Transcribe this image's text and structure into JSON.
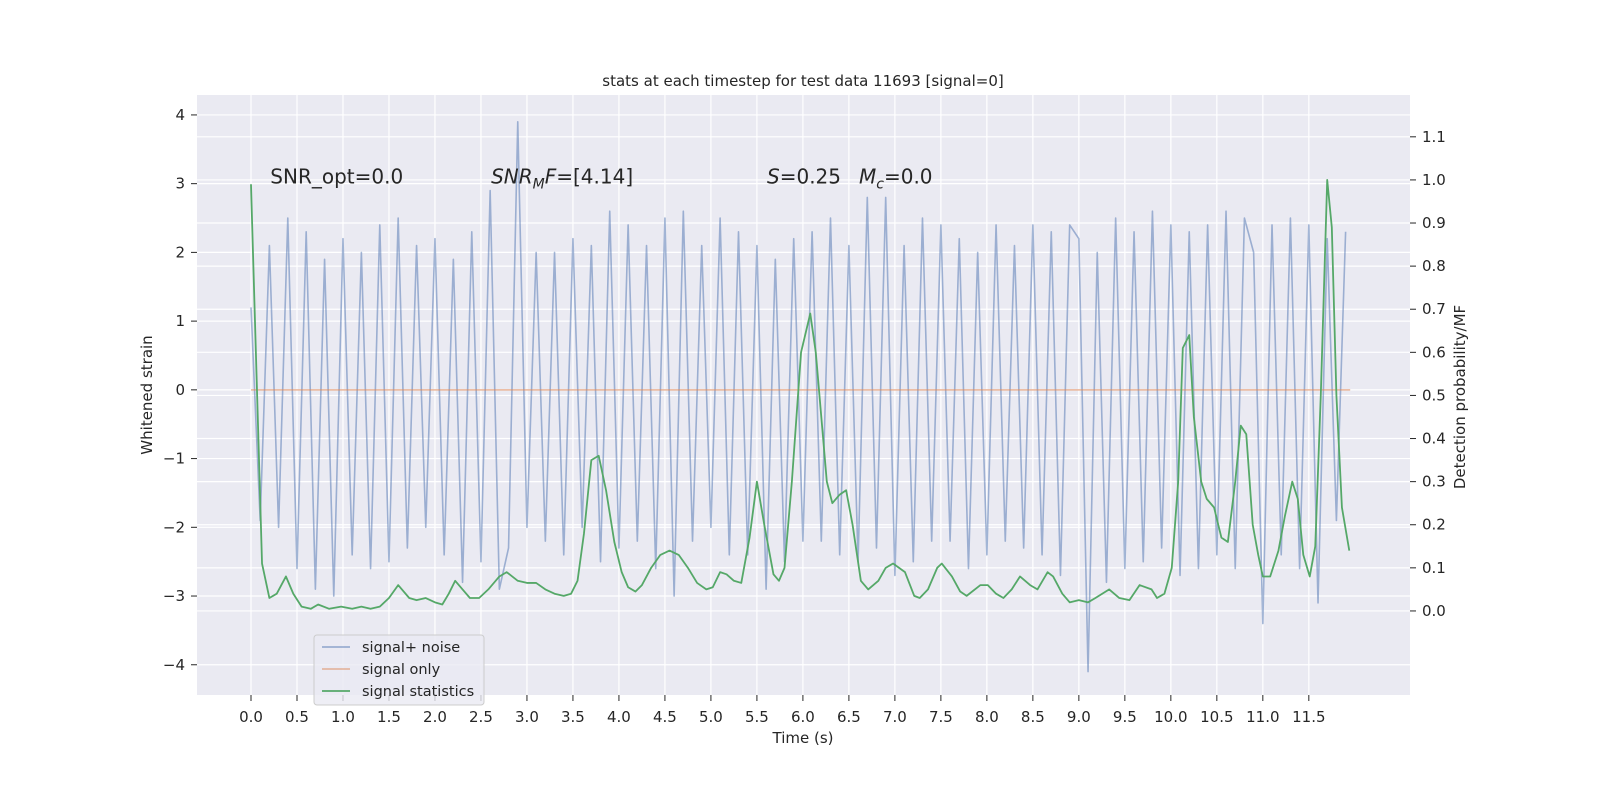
{
  "chart_data": {
    "type": "line",
    "title": "stats at each timestep for test data 11693 [signal=0]",
    "xlabel": "Time (s)",
    "ylabel": "Whitened strain",
    "y2label": "Detection probability/MF",
    "xlim": [
      -0.587,
      12.6
    ],
    "ylim": [
      -4.44,
      4.29
    ],
    "y2lim": [
      -0.195,
      1.197
    ],
    "xticks": [
      {
        "value": 0,
        "label": "0.0"
      },
      0.5,
      {
        "value": 1,
        "label": "1.0"
      },
      1.5,
      {
        "value": 2,
        "label": "2.0"
      },
      2.5,
      {
        "value": 3,
        "label": "3.0"
      },
      3.5,
      {
        "value": 4,
        "label": "4.0"
      },
      4.5,
      {
        "value": 5,
        "label": "5.0"
      },
      5.5,
      {
        "value": 6,
        "label": "6.0"
      },
      6.5,
      {
        "value": 7,
        "label": "7.0"
      },
      7.5,
      {
        "value": 8,
        "label": "8.0"
      },
      8.5,
      {
        "value": 9,
        "label": "9.0"
      },
      9.5,
      {
        "value": 10,
        "label": "10.0"
      },
      10.5,
      {
        "value": 11,
        "label": "11.0"
      },
      11.5
    ],
    "yticks": [
      {
        "value": -4,
        "label": "−4"
      },
      {
        "value": -3,
        "label": "−3"
      },
      {
        "value": -2,
        "label": "−2"
      },
      {
        "value": -1,
        "label": "−1"
      },
      0,
      1,
      2,
      3,
      4
    ],
    "y2ticks": [
      {
        "value": 0,
        "label": "0.0"
      },
      0.1,
      0.2,
      0.3,
      0.4,
      0.5,
      0.6,
      0.7,
      0.8,
      0.9,
      {
        "value": 1,
        "label": "1.0"
      },
      1.1
    ],
    "grid": true,
    "legend": "lower left",
    "series": [
      {
        "name": "signal+ noise",
        "color": "#4c72b0",
        "opacity": 0.5,
        "x": [
          0,
          0.1,
          0.2,
          0.3,
          0.4,
          0.5,
          0.6,
          0.7,
          0.8,
          0.9,
          1,
          1.1,
          1.2,
          1.3,
          1.4,
          1.5,
          1.6,
          1.7,
          1.8,
          1.9,
          2,
          2.1,
          2.2,
          2.3,
          2.4,
          2.5,
          2.6,
          2.7,
          2.8,
          2.9,
          3,
          3.1,
          3.2,
          3.3,
          3.4,
          3.5,
          3.6,
          3.7,
          3.8,
          3.9,
          4,
          4.1,
          4.2,
          4.3,
          4.4,
          4.5,
          4.6,
          4.7,
          4.8,
          4.9,
          5,
          5.1,
          5.2,
          5.3,
          5.4,
          5.5,
          5.6,
          5.7,
          5.8,
          5.9,
          6,
          6.1,
          6.2,
          6.3,
          6.4,
          6.5,
          6.6,
          6.7,
          6.8,
          6.9,
          7,
          7.1,
          7.2,
          7.3,
          7.4,
          7.5,
          7.6,
          7.7,
          7.8,
          7.9,
          8,
          8.1,
          8.2,
          8.3,
          8.4,
          8.5,
          8.6,
          8.7,
          8.8,
          8.9,
          9,
          9.1,
          9.2,
          9.3,
          9.4,
          9.5,
          9.6,
          9.7,
          9.8,
          9.9,
          10,
          10.1,
          10.2,
          10.3,
          10.4,
          10.5,
          10.6,
          10.7,
          10.8,
          10.9,
          11,
          11.1,
          11.2,
          11.3,
          11.4,
          11.5,
          11.6,
          11.7,
          11.8,
          11.9
        ],
        "values": [
          1.2,
          -1.9,
          2.1,
          -2.0,
          2.5,
          -2.6,
          2.3,
          -2.9,
          1.9,
          -3.0,
          2.2,
          -2.4,
          2.0,
          -2.6,
          2.4,
          -2.5,
          2.5,
          -2.3,
          2.1,
          -2.0,
          2.2,
          -2.4,
          1.9,
          -2.8,
          2.3,
          -2.5,
          2.9,
          -2.9,
          -2.3,
          3.9,
          -2.0,
          2.0,
          -2.2,
          2.0,
          -2.4,
          2.2,
          -2.0,
          2.1,
          -2.5,
          2.6,
          -2.3,
          2.4,
          -2.2,
          2.1,
          -2.6,
          2.5,
          -3.0,
          2.6,
          -2.2,
          2.1,
          -2.0,
          2.5,
          -2.4,
          2.3,
          -2.4,
          2.1,
          -2.9,
          1.9,
          -2.5,
          2.2,
          -2.2,
          2.3,
          -2.2,
          2.5,
          -2.4,
          2.1,
          -2.5,
          2.8,
          -2.3,
          2.8,
          -2.7,
          2.1,
          -2.5,
          2.5,
          -2.2,
          2.4,
          -2.2,
          2.2,
          -2.6,
          2.0,
          -2.4,
          2.4,
          -2.2,
          2.1,
          -2.3,
          2.4,
          -2.4,
          2.3,
          -2.7,
          2.4,
          2.2,
          -4.1,
          2.0,
          -2.8,
          2.5,
          -2.6,
          2.3,
          -2.5,
          2.6,
          -2.3,
          2.4,
          -2.7,
          2.3,
          -2.6,
          2.4,
          -2.4,
          2.6,
          -2.6,
          2.5,
          2.0,
          -3.4,
          2.4,
          -2.4,
          2.5,
          -2.6,
          2.4,
          -3.1,
          2.2,
          -1.9,
          2.3
        ]
      },
      {
        "name": "signal only",
        "color": "#dd8452",
        "opacity": 0.5,
        "x": [
          0,
          11.95
        ],
        "values": [
          0,
          0
        ]
      },
      {
        "name": "signal statistics",
        "color": "#55a868",
        "opacity": 1,
        "axis": "y2",
        "x": [
          0,
          0.12,
          0.2,
          0.28,
          0.38,
          0.46,
          0.55,
          0.65,
          0.73,
          0.85,
          0.98,
          1.1,
          1.2,
          1.3,
          1.4,
          1.5,
          1.6,
          1.72,
          1.8,
          1.9,
          2.0,
          2.08,
          2.15,
          2.22,
          2.3,
          2.38,
          2.48,
          2.58,
          2.7,
          2.78,
          2.9,
          3.0,
          3.1,
          3.2,
          3.3,
          3.4,
          3.48,
          3.55,
          3.62,
          3.7,
          3.78,
          3.86,
          3.95,
          4.03,
          4.1,
          4.18,
          4.25,
          4.35,
          4.45,
          4.55,
          4.65,
          4.75,
          4.85,
          4.95,
          5.02,
          5.1,
          5.17,
          5.25,
          5.33,
          5.42,
          5.5,
          5.58,
          5.68,
          5.74,
          5.8,
          5.88,
          5.98,
          6.08,
          6.14,
          6.26,
          6.32,
          6.4,
          6.47,
          6.54,
          6.63,
          6.71,
          6.82,
          6.9,
          6.98,
          7.11,
          7.21,
          7.27,
          7.36,
          7.46,
          7.51,
          7.62,
          7.71,
          7.78,
          7.93,
          8.01,
          8.1,
          8.18,
          8.27,
          8.36,
          8.47,
          8.55,
          8.66,
          8.72,
          8.82,
          8.9,
          9.0,
          9.1,
          9.18,
          9.33,
          9.44,
          9.55,
          9.66,
          9.79,
          9.85,
          9.93,
          10.01,
          10.08,
          10.13,
          10.2,
          10.25,
          10.33,
          10.39,
          10.47,
          10.55,
          10.62,
          10.7,
          10.76,
          10.82,
          10.89,
          10.95,
          11.0,
          11.08,
          11.17,
          11.24,
          11.32,
          11.38,
          11.44,
          11.51,
          11.57,
          11.63,
          11.7,
          11.75,
          11.8,
          11.86,
          11.94
        ],
        "values": [
          0.99,
          0.11,
          0.03,
          0.04,
          0.08,
          0.04,
          0.01,
          0.005,
          0.015,
          0.005,
          0.01,
          0.005,
          0.01,
          0.005,
          0.01,
          0.03,
          0.06,
          0.03,
          0.025,
          0.03,
          0.02,
          0.015,
          0.04,
          0.07,
          0.05,
          0.03,
          0.03,
          0.05,
          0.08,
          0.09,
          0.07,
          0.065,
          0.065,
          0.05,
          0.04,
          0.035,
          0.04,
          0.07,
          0.18,
          0.35,
          0.36,
          0.28,
          0.16,
          0.09,
          0.055,
          0.045,
          0.06,
          0.1,
          0.13,
          0.14,
          0.13,
          0.1,
          0.065,
          0.05,
          0.055,
          0.09,
          0.085,
          0.07,
          0.065,
          0.17,
          0.3,
          0.2,
          0.085,
          0.07,
          0.1,
          0.3,
          0.6,
          0.69,
          0.6,
          0.3,
          0.25,
          0.27,
          0.28,
          0.2,
          0.07,
          0.05,
          0.07,
          0.1,
          0.11,
          0.09,
          0.035,
          0.03,
          0.05,
          0.1,
          0.11,
          0.08,
          0.045,
          0.035,
          0.06,
          0.06,
          0.04,
          0.03,
          0.05,
          0.08,
          0.06,
          0.05,
          0.09,
          0.08,
          0.04,
          0.02,
          0.025,
          0.02,
          0.03,
          0.05,
          0.03,
          0.025,
          0.06,
          0.05,
          0.03,
          0.04,
          0.1,
          0.3,
          0.61,
          0.64,
          0.45,
          0.3,
          0.26,
          0.24,
          0.17,
          0.16,
          0.3,
          0.43,
          0.41,
          0.2,
          0.13,
          0.08,
          0.08,
          0.14,
          0.22,
          0.3,
          0.26,
          0.13,
          0.08,
          0.15,
          0.5,
          1.0,
          0.89,
          0.5,
          0.24,
          0.14
        ]
      }
    ],
    "annotations": [
      {
        "x": 0.21,
        "y": 3.0,
        "parts": [
          {
            "text": "SNR_opt=0.0",
            "style": "normal"
          }
        ]
      },
      {
        "x": 2.61,
        "y": 3.0,
        "parts": [
          {
            "text": "SNR",
            "style": "italic"
          },
          {
            "text": "M",
            "style": "sub"
          },
          {
            "text": "F",
            "style": "italic"
          },
          {
            "text": "=[4.14]",
            "style": "normal"
          }
        ]
      },
      {
        "x": 5.61,
        "y": 3.0,
        "parts": [
          {
            "text": "S",
            "style": "italic"
          },
          {
            "text": "=0.25",
            "style": "normal"
          }
        ]
      },
      {
        "x": 6.61,
        "y": 3.0,
        "parts": [
          {
            "text": "M",
            "style": "italic"
          },
          {
            "text": "c",
            "style": "sub"
          },
          {
            "text": "=0.0",
            "style": "normal"
          }
        ]
      }
    ]
  }
}
